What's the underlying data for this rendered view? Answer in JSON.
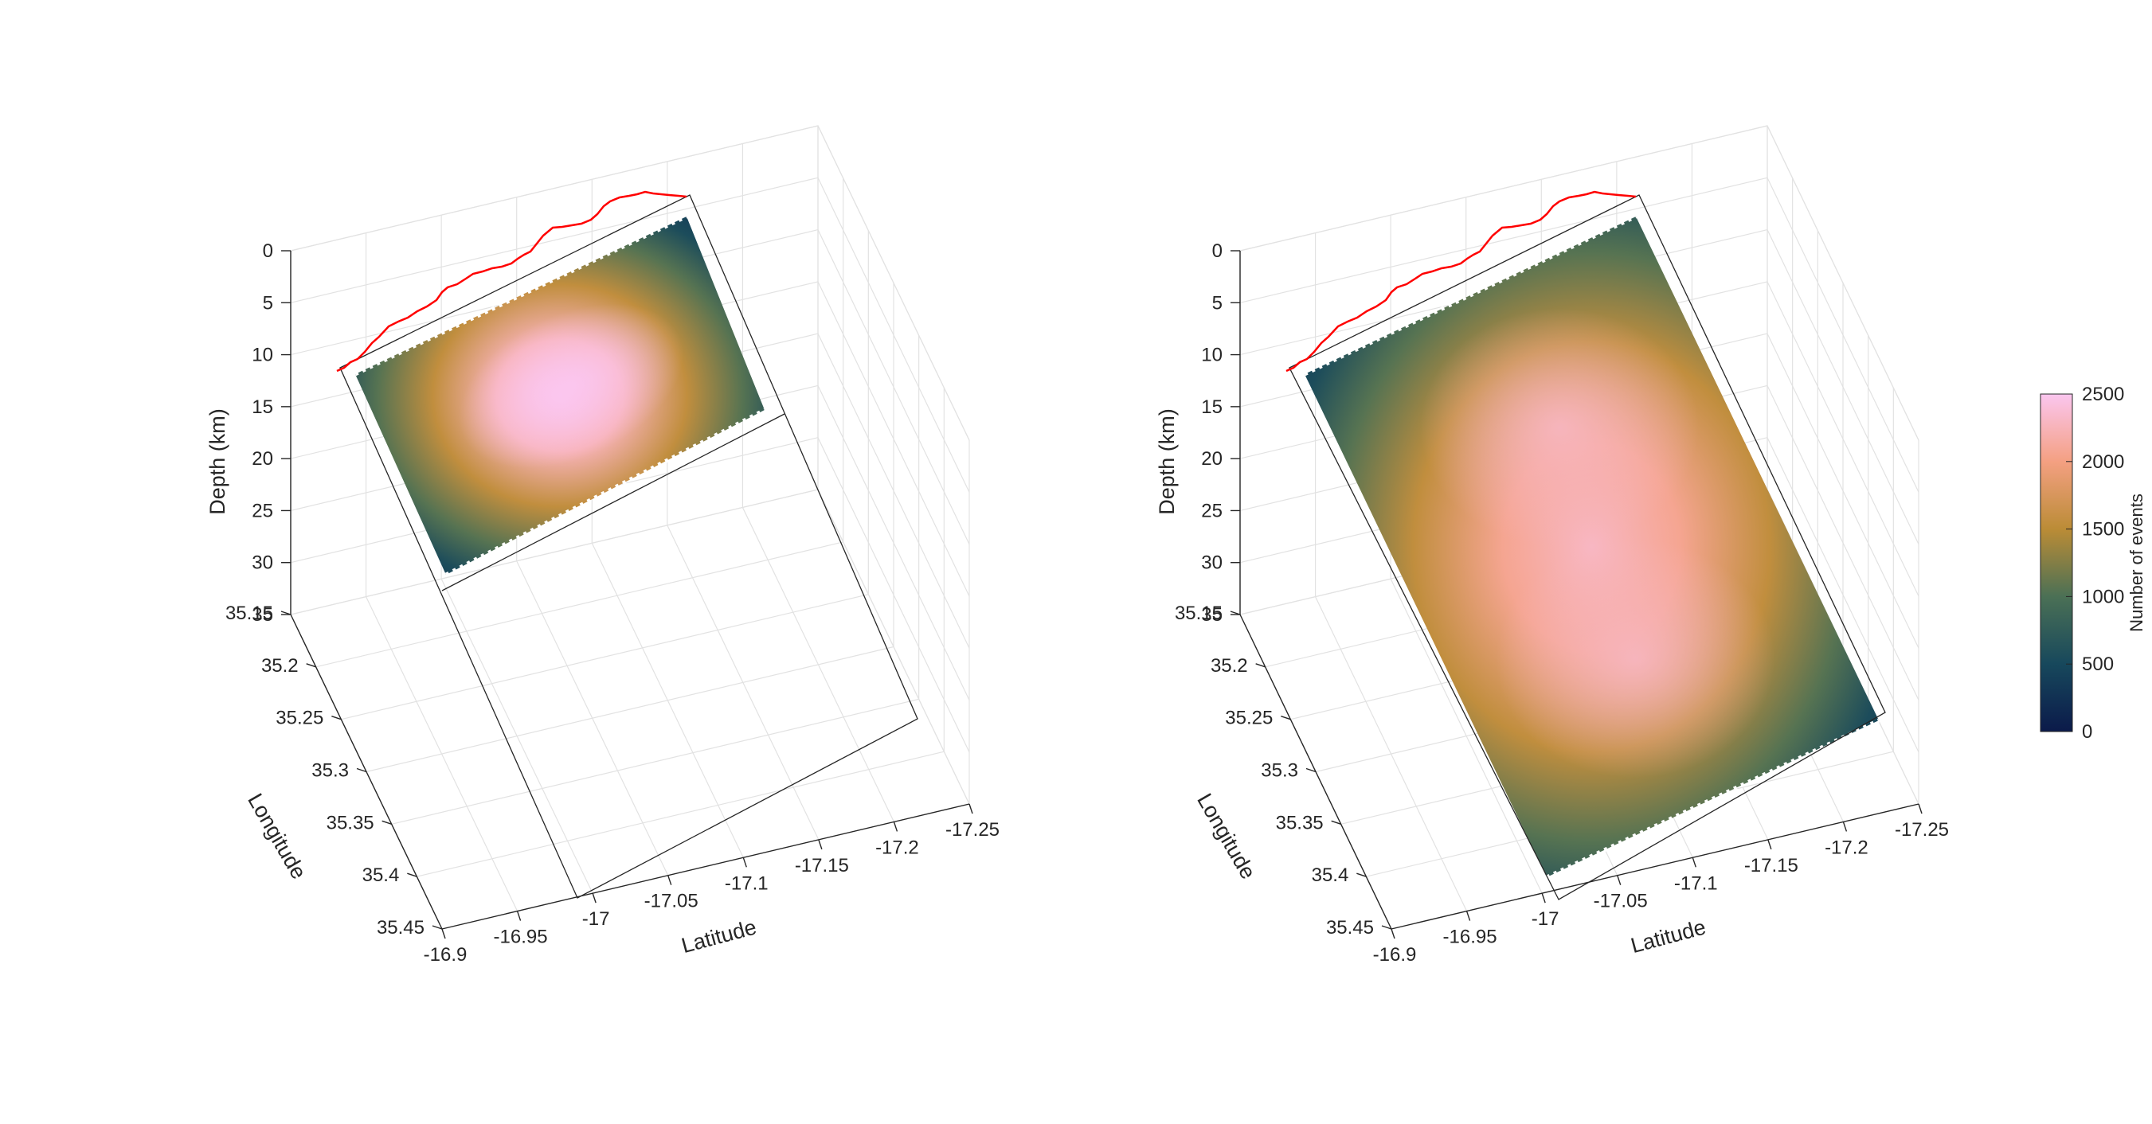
{
  "figure": {
    "colormap": [
      {
        "stop": 0.0,
        "color": "#0b1a4a"
      },
      {
        "stop": 0.2,
        "color": "#17485c"
      },
      {
        "stop": 0.4,
        "color": "#4b7055"
      },
      {
        "stop": 0.6,
        "color": "#bb8c36"
      },
      {
        "stop": 0.8,
        "color": "#f4a082"
      },
      {
        "stop": 1.0,
        "color": "#fbc6ef"
      }
    ],
    "colorbar": {
      "label": "Number of events",
      "ticks": [
        "0",
        "500",
        "1000",
        "1500",
        "2000",
        "2500"
      ],
      "range": [
        0,
        2500
      ]
    }
  },
  "chart_data": [
    {
      "type": "heatmap",
      "name": "left-panel",
      "xlabel": "Latitude",
      "ylabel": "Longitude",
      "zlabel": "Depth (km)",
      "xticks": [
        "-16.9",
        "-16.95",
        "-17",
        "-17.05",
        "-17.1",
        "-17.15",
        "-17.2",
        "-17.25"
      ],
      "yticks": [
        "35.15",
        "35.2",
        "35.25",
        "35.3",
        "35.35",
        "35.4",
        "35.45"
      ],
      "zticks": [
        "0",
        "5",
        "10",
        "15",
        "20",
        "25",
        "30",
        "35"
      ],
      "xlim": [
        -17.25,
        -16.9
      ],
      "ylim": [
        35.15,
        35.45
      ],
      "zlim": [
        0,
        35
      ],
      "peak_events": 2500,
      "peak_count": 1,
      "fault_outline": true,
      "red_trace": "surface trace (red line)"
    },
    {
      "type": "heatmap",
      "name": "right-panel",
      "xlabel": "Latitude",
      "ylabel": "Longitude",
      "zlabel": "Depth (km)",
      "xticks": [
        "-16.9",
        "-16.95",
        "-17",
        "-17.05",
        "-17.1",
        "-17.15",
        "-17.2",
        "-17.25"
      ],
      "yticks": [
        "35.15",
        "35.2",
        "35.25",
        "35.3",
        "35.35",
        "35.4",
        "35.45"
      ],
      "zticks": [
        "0",
        "5",
        "10",
        "15",
        "20",
        "25",
        "30",
        "35"
      ],
      "xlim": [
        -17.25,
        -16.9
      ],
      "ylim": [
        35.15,
        35.45
      ],
      "zlim": [
        0,
        35
      ],
      "peak_events": 2300,
      "peak_count": 2,
      "fault_outline": false,
      "red_trace": "surface trace (red line)"
    }
  ]
}
